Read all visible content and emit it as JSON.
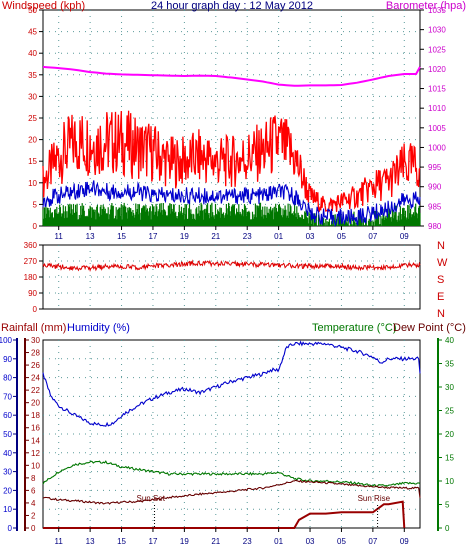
{
  "chart_data": [
    {
      "type": "line",
      "title": "24 hour graph day : 12 May 2012",
      "left_axis_label": "Windspeed (kph)",
      "right_axis_label": "Barometer (hpa)",
      "left_ticks": [
        "0",
        "5",
        "10",
        "15",
        "20",
        "25",
        "30",
        "35",
        "40",
        "45",
        "50"
      ],
      "right_ticks": [
        "980",
        "985",
        "990",
        "995",
        "1000",
        "1005",
        "1010",
        "1015",
        "1020",
        "1025",
        "1030",
        "1035"
      ],
      "x_ticks": [
        "11",
        "13",
        "15",
        "17",
        "19",
        "21",
        "23",
        "01",
        "03",
        "05",
        "07",
        "09"
      ],
      "ylim_left": [
        0,
        50
      ],
      "ylim_right": [
        980,
        1035
      ],
      "grid": true,
      "series": [
        {
          "name": "Windspeed (kph)",
          "color": "#ff0000",
          "kind": "gust",
          "x": [
            10,
            11,
            12,
            13,
            14,
            15,
            16,
            17,
            18,
            19,
            20,
            21,
            22,
            23,
            0,
            1,
            2,
            3,
            4,
            5,
            6,
            7,
            8,
            9
          ],
          "values": [
            9,
            14,
            17,
            17,
            17,
            17,
            16,
            15,
            13,
            13,
            14,
            13,
            13,
            14,
            15,
            17,
            14,
            6,
            4,
            5,
            6,
            8,
            9,
            12
          ]
        },
        {
          "name": "Average windspeed",
          "color": "#0000cc",
          "kind": "average",
          "x": [
            10,
            11,
            12,
            13,
            14,
            15,
            16,
            17,
            18,
            19,
            20,
            21,
            22,
            23,
            0,
            1,
            2,
            3,
            4,
            5,
            6,
            7,
            8,
            9
          ],
          "values": [
            6,
            7,
            8,
            9,
            8,
            8,
            8,
            7,
            7,
            7,
            7,
            7,
            7,
            7,
            7,
            8,
            7,
            3,
            2,
            2,
            2,
            3,
            4,
            6
          ]
        },
        {
          "name": "Wind low",
          "color": "#007700",
          "kind": "low",
          "x": [
            10,
            11,
            12,
            13,
            14,
            15,
            16,
            17,
            18,
            19,
            20,
            21,
            22,
            23,
            0,
            1,
            2,
            3,
            4,
            5,
            6,
            7,
            8,
            9
          ],
          "values": [
            2,
            3,
            3,
            3,
            3,
            3,
            3,
            3,
            3,
            3,
            3,
            3,
            3,
            3,
            3,
            3,
            3,
            1,
            0,
            1,
            1,
            1,
            2,
            3
          ]
        },
        {
          "name": "Barometer (hpa)",
          "color": "#ff00ff",
          "axis": "right",
          "x": [
            10,
            11,
            12,
            13,
            14,
            15,
            16,
            17,
            18,
            19,
            20,
            21,
            22,
            23,
            0,
            1,
            2,
            3,
            4,
            5,
            6,
            7,
            8,
            9
          ],
          "values": [
            1020.5,
            1020.2,
            1019.8,
            1019.2,
            1018.8,
            1018.6,
            1018.5,
            1018.4,
            1018.3,
            1018.2,
            1018.3,
            1018.2,
            1017.8,
            1017.3,
            1016.8,
            1016.0,
            1015.7,
            1015.8,
            1015.8,
            1015.9,
            1016.5,
            1017.3,
            1018.2,
            1018.7
          ]
        }
      ]
    },
    {
      "type": "line",
      "title": "",
      "left_ticks": [
        "0",
        "90",
        "180",
        "270",
        "360"
      ],
      "right_labels": [
        "N",
        "W",
        "S",
        "E",
        "N"
      ],
      "x_ticks": [],
      "ylim": [
        0,
        360
      ],
      "grid": true,
      "series": [
        {
          "name": "Wind direction",
          "color": "#dd0000",
          "x": [
            10,
            11,
            12,
            13,
            14,
            15,
            16,
            17,
            18,
            19,
            20,
            21,
            22,
            23,
            0,
            1,
            2,
            3,
            4,
            5,
            6,
            7,
            8,
            9
          ],
          "values": [
            245,
            238,
            232,
            230,
            238,
            240,
            235,
            242,
            245,
            252,
            258,
            256,
            254,
            250,
            248,
            246,
            243,
            240,
            244,
            238,
            232,
            236,
            230,
            248
          ]
        }
      ]
    },
    {
      "type": "line",
      "title": "",
      "rain_label": "Rainfall (mm)",
      "humidity_label": "Humidity (%)",
      "temp_label": "Temperature (°C)",
      "dew_label": "Dew Point (°C)",
      "humidity_ticks": [
        "0",
        "10",
        "20",
        "30",
        "40",
        "50",
        "60",
        "70",
        "80",
        "90",
        "100"
      ],
      "rain_ticks": [
        "0",
        "2",
        "4",
        "6",
        "8",
        "10",
        "12",
        "14",
        "16",
        "18",
        "20",
        "22",
        "24",
        "26",
        "28",
        "30"
      ],
      "temp_ticks": [
        "0",
        "5",
        "10",
        "15",
        "20",
        "25",
        "30",
        "35",
        "40"
      ],
      "x_ticks": [
        "11",
        "13",
        "15",
        "17",
        "19",
        "21",
        "23",
        "01",
        "03",
        "05",
        "07",
        "09"
      ],
      "ylim_humidity": [
        0,
        100
      ],
      "ylim_temp": [
        0,
        40
      ],
      "grid": true,
      "annotations": [
        {
          "text": "Sun Set",
          "x": 17.1
        },
        {
          "text": "Sun Rise",
          "x": 7.3
        }
      ],
      "series": [
        {
          "name": "Humidity (%)",
          "color": "#0000cc",
          "axis": "humidity",
          "x": [
            10,
            10.5,
            11,
            12,
            13,
            13.5,
            14,
            14.5,
            15,
            16,
            17,
            18,
            19,
            20,
            21,
            22,
            23,
            0,
            0.5,
            1,
            1.5,
            2,
            3,
            4,
            5,
            6,
            7,
            7.5,
            8,
            9
          ],
          "values": [
            82,
            70,
            65,
            60,
            56,
            55,
            55,
            56,
            60,
            65,
            69,
            72,
            74,
            72,
            75,
            78,
            80,
            82,
            84,
            84,
            96,
            98,
            98,
            98,
            96,
            94,
            91,
            88,
            90,
            90
          ]
        },
        {
          "name": "Temperature (°C)",
          "color": "#007700",
          "axis": "temp",
          "x": [
            10,
            11,
            12,
            13,
            14,
            15,
            16,
            17,
            18,
            19,
            20,
            21,
            22,
            23,
            0,
            1,
            2,
            3,
            4,
            5,
            6,
            7,
            8,
            9
          ],
          "values": [
            9.5,
            12.0,
            13.5,
            14.0,
            14.0,
            13.0,
            12.5,
            12.0,
            11.5,
            11.5,
            11.5,
            11.5,
            11.5,
            11.5,
            11.5,
            11.8,
            10.5,
            10.0,
            10.0,
            9.8,
            9.5,
            9.0,
            9.0,
            9.5
          ]
        },
        {
          "name": "Dew Point (°C)",
          "color": "#660000",
          "axis": "temp",
          "x": [
            10,
            11,
            12,
            13,
            14,
            15,
            16,
            17,
            18,
            19,
            20,
            21,
            22,
            23,
            0,
            1,
            2,
            3,
            4,
            5,
            6,
            7,
            8,
            9
          ],
          "values": [
            6.5,
            6.0,
            5.8,
            5.5,
            5.2,
            5.5,
            5.6,
            6.0,
            6.5,
            6.8,
            7.2,
            7.5,
            7.8,
            8.2,
            8.5,
            9.2,
            10.0,
            9.8,
            9.6,
            9.3,
            9.0,
            8.8,
            8.6,
            8.5
          ]
        },
        {
          "name": "Rainfall (mm)",
          "color": "#990000",
          "axis": "rain",
          "x": [
            10,
            11,
            12,
            13,
            14,
            15,
            16,
            17,
            18,
            19,
            20,
            21,
            22,
            23,
            0,
            1,
            2,
            2.3,
            3,
            4,
            5,
            6,
            7,
            7.7,
            8,
            8.9,
            9
          ],
          "values": [
            0,
            0,
            0,
            0,
            0,
            0,
            0,
            0,
            0,
            0,
            0,
            0,
            0,
            0,
            0,
            0,
            0,
            1.3,
            2.3,
            2.3,
            2.5,
            2.5,
            2.5,
            3.8,
            3.8,
            4.2,
            0
          ]
        }
      ]
    }
  ],
  "colors": {
    "windspeed": "#ff0000",
    "average": "#0000cc",
    "low": "#007700",
    "barometer": "#ff00ff",
    "title": "#000080",
    "grid": "#5a9a9a",
    "direction_labels": "#cc0000"
  }
}
